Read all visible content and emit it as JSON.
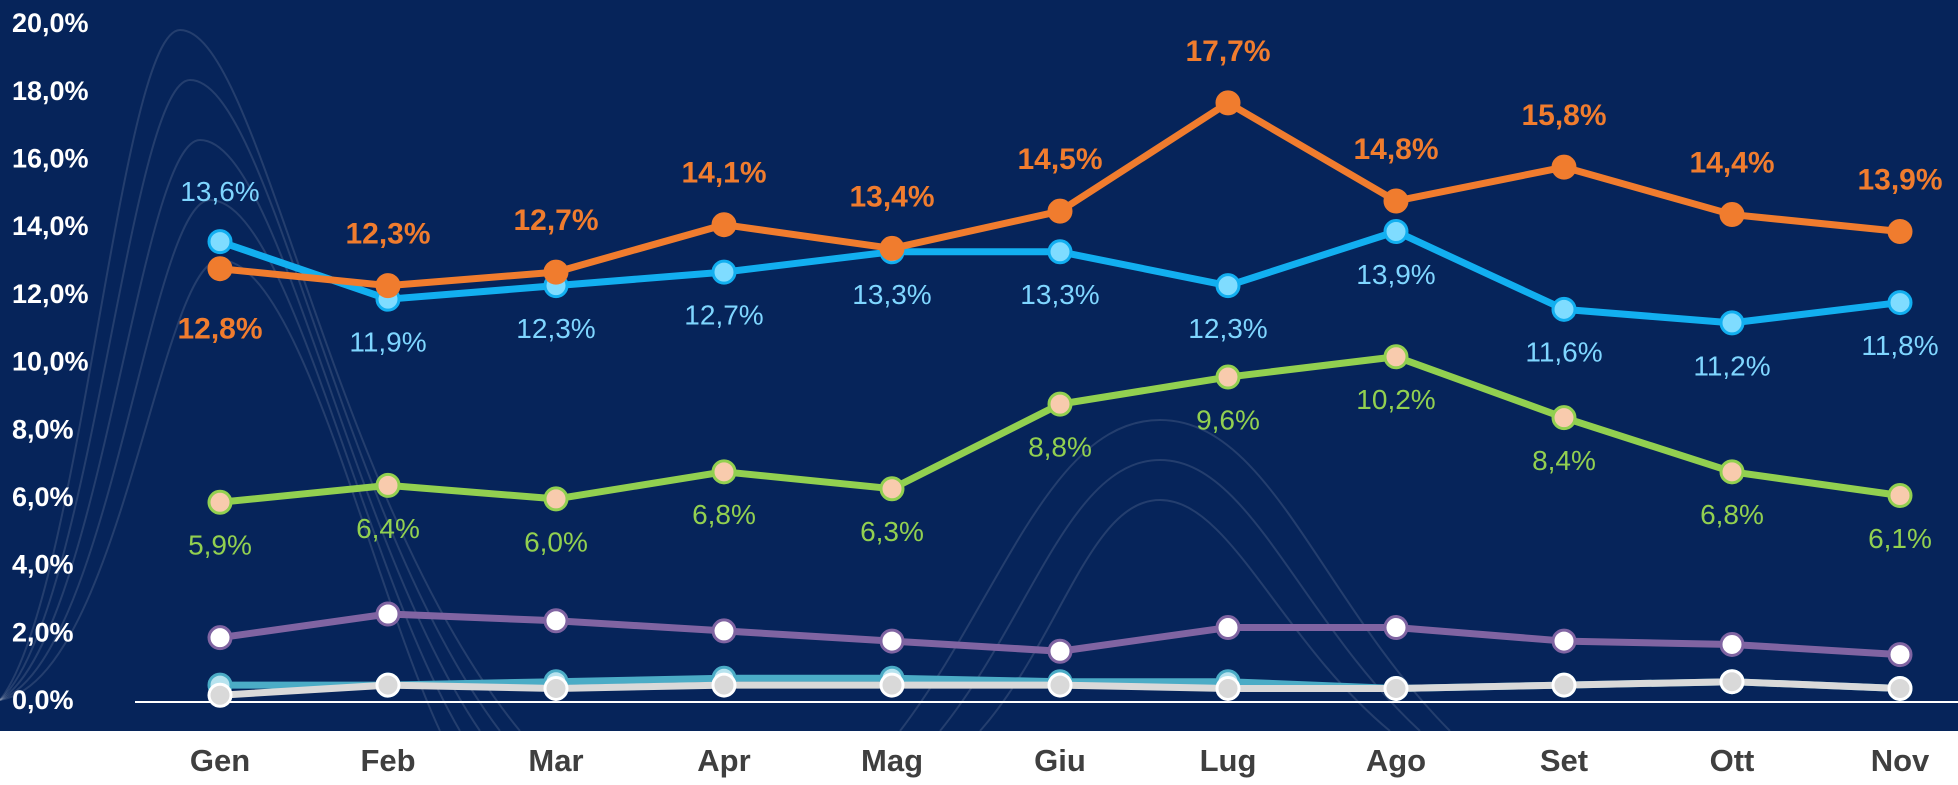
{
  "chart_data": {
    "type": "line",
    "categories": [
      "Gen",
      "Feb",
      "Mar",
      "Apr",
      "Mag",
      "Giu",
      "Lug",
      "Ago",
      "Set",
      "Ott",
      "Nov"
    ],
    "ylim": [
      0,
      20
    ],
    "yticks": [
      {
        "value": 0,
        "label": "0,0%"
      },
      {
        "value": 2,
        "label": "2,0%"
      },
      {
        "value": 4,
        "label": "4,0%"
      },
      {
        "value": 6,
        "label": "6,0%"
      },
      {
        "value": 8,
        "label": "8,0%"
      },
      {
        "value": 10,
        "label": "10,0%"
      },
      {
        "value": 12,
        "label": "12,0%"
      },
      {
        "value": 14,
        "label": "14,0%"
      },
      {
        "value": 16,
        "label": "16,0%"
      },
      {
        "value": 18,
        "label": "18,0%"
      },
      {
        "value": 20,
        "label": "20,0%"
      }
    ],
    "series": [
      {
        "color": "#4bacc6",
        "marker_color": "#b7e3ef",
        "values": [
          0.5,
          0.5,
          0.6,
          0.7,
          0.7,
          0.6,
          0.6,
          0.4,
          0.5,
          0.6,
          0.4
        ]
      },
      {
        "color": "#d9d9d9",
        "marker_color": "#d9d9d9",
        "values": [
          0.2,
          0.5,
          0.4,
          0.5,
          0.5,
          0.5,
          0.4,
          0.4,
          0.5,
          0.6,
          0.4
        ]
      },
      {
        "color": "#8064a2",
        "marker_color": "#ffffff",
        "values": [
          1.9,
          2.6,
          2.4,
          2.1,
          1.8,
          1.5,
          2.2,
          2.2,
          1.8,
          1.7,
          1.4
        ]
      },
      {
        "color": "#92d050",
        "marker_color": "#f8cbad",
        "label_color": "#92d050",
        "values": [
          5.9,
          6.4,
          6.0,
          6.8,
          6.3,
          8.8,
          9.6,
          10.2,
          8.4,
          6.8,
          6.1
        ],
        "value_labels": [
          "5,9%",
          "6,4%",
          "6,0%",
          "6,8%",
          "6,3%",
          "8,8%",
          "9,6%",
          "10,2%",
          "8,4%",
          "6,8%",
          "6,1%"
        ]
      },
      {
        "color": "#12aff0",
        "marker_color": "#7fdcff",
        "label_color": "#7fd6ff",
        "values": [
          13.6,
          11.9,
          12.3,
          12.7,
          13.3,
          13.3,
          12.3,
          13.9,
          11.6,
          11.2,
          11.8
        ],
        "value_labels": [
          "13,6%",
          "11,9%",
          "12,3%",
          "12,7%",
          "13,3%",
          "13,3%",
          "12,3%",
          "13,9%",
          "11,6%",
          "11,2%",
          "11,8%"
        ]
      },
      {
        "color": "#f07c2e",
        "marker_color": "#f07c2e",
        "label_color": "#f07c2e",
        "values": [
          12.8,
          12.3,
          12.7,
          14.1,
          13.4,
          14.5,
          17.7,
          14.8,
          15.8,
          14.4,
          13.9
        ],
        "value_labels": [
          "12,8%",
          "12,3%",
          "12,7%",
          "14,1%",
          "13,4%",
          "14,5%",
          "17,7%",
          "14,8%",
          "15,8%",
          "14,4%",
          "13,9%"
        ]
      }
    ]
  }
}
